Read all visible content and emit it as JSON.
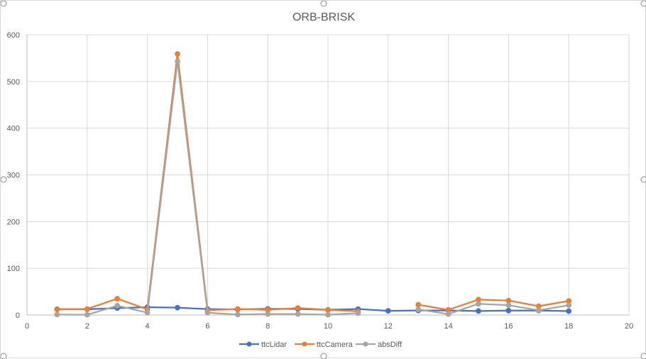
{
  "chart_data": {
    "type": "line",
    "title": "ORB-BRISK",
    "xlabel": "",
    "ylabel": "",
    "xlim": [
      0,
      20
    ],
    "ylim": [
      0,
      600
    ],
    "xticks": [
      0,
      2,
      4,
      6,
      8,
      10,
      12,
      14,
      16,
      18,
      20
    ],
    "yticks": [
      0,
      100,
      200,
      300,
      400,
      500,
      600
    ],
    "grid": true,
    "legend_position": "bottom",
    "series": [
      {
        "name": "ttcLidar",
        "color": "#4472c4",
        "points": [
          [
            1,
            12.5
          ],
          [
            2,
            12.3
          ],
          [
            3,
            14.9
          ],
          [
            4,
            16.7
          ],
          [
            5,
            15.7
          ],
          [
            6,
            12.8
          ],
          [
            7,
            11.9
          ],
          [
            8,
            13.1
          ],
          [
            9,
            13.0
          ],
          [
            10,
            11.2
          ],
          [
            11,
            12.8
          ],
          [
            12,
            8.9
          ],
          [
            13,
            9.6
          ],
          [
            14,
            9.6
          ],
          [
            15,
            8.6
          ],
          [
            16,
            9.5
          ],
          [
            17,
            9.5
          ],
          [
            18,
            8.4
          ]
        ]
      },
      {
        "name": "ttcCamera",
        "color": "#ed7d31",
        "points": [
          [
            1,
            12
          ],
          [
            2,
            13
          ],
          [
            3,
            35
          ],
          [
            4,
            12
          ],
          [
            5,
            559
          ],
          [
            6,
            10
          ],
          [
            7,
            13
          ],
          [
            8,
            11
          ],
          [
            9,
            15
          ],
          [
            10,
            11
          ],
          [
            11,
            8
          ],
          [
            12,
            null
          ],
          [
            13,
            22
          ],
          [
            14,
            11
          ],
          [
            15,
            33
          ],
          [
            16,
            31
          ],
          [
            17,
            19
          ],
          [
            18,
            30
          ]
        ]
      },
      {
        "name": "absDiff",
        "color": "#a5a5a5",
        "points": [
          [
            1,
            1
          ],
          [
            2,
            0.5
          ],
          [
            3,
            20
          ],
          [
            4,
            5
          ],
          [
            5,
            543
          ],
          [
            6,
            5
          ],
          [
            7,
            1
          ],
          [
            8,
            2
          ],
          [
            9,
            2
          ],
          [
            10,
            0.5
          ],
          [
            11,
            4
          ],
          [
            12,
            null
          ],
          [
            13,
            12
          ],
          [
            14,
            2
          ],
          [
            15,
            24
          ],
          [
            16,
            21
          ],
          [
            17,
            10
          ],
          [
            18,
            21
          ]
        ]
      }
    ]
  }
}
